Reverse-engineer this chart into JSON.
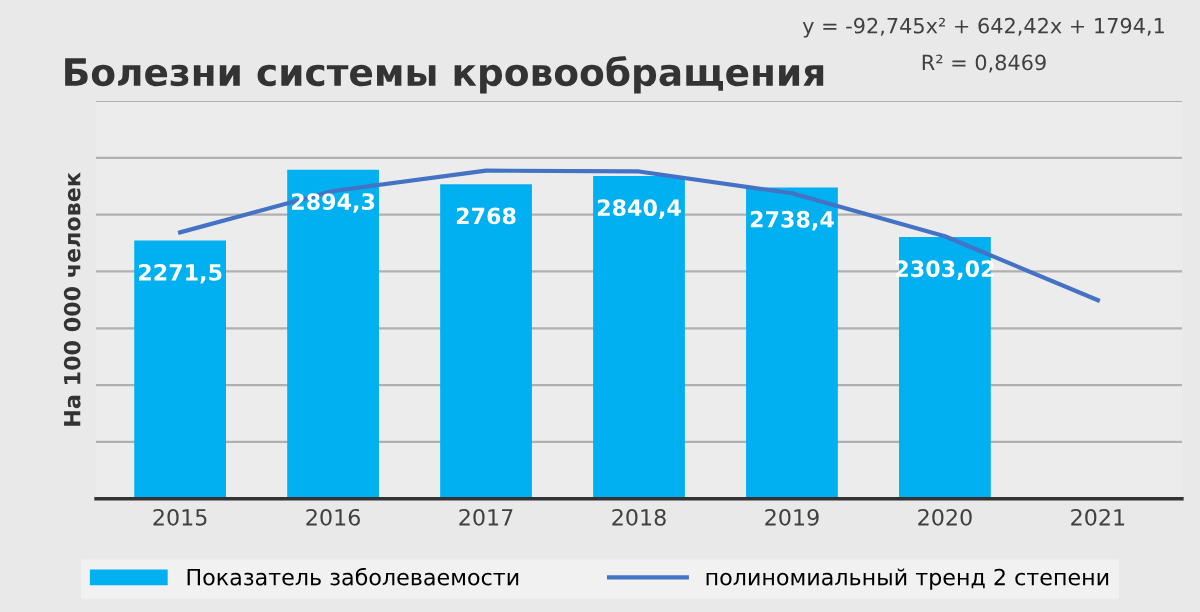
{
  "chart_data": {
    "type": "bar",
    "title": "Болезни системы кровообращения",
    "ylabel": "На 100 000 человек",
    "categories": [
      "2015",
      "2016",
      "2017",
      "2018",
      "2019",
      "2020",
      "2021"
    ],
    "series": [
      {
        "name": "Показатель заболеваемости",
        "color": "#00b0f0",
        "values": [
          2271.5,
          2894.3,
          2768,
          2840.4,
          2738.4,
          2303.02,
          null
        ],
        "value_labels": [
          "2271,5",
          "2894,3",
          "2768",
          "2840,4",
          "2738,4",
          "2303,02",
          null
        ]
      },
      {
        "name": "полиномиальный тренд 2 степени",
        "type": "line",
        "color": "#4472c4",
        "values": [
          2344,
          2708,
          2887,
          2880,
          2688,
          2310,
          1747
        ]
      }
    ],
    "annotations": [
      "y = -92,745x² + 642,42x + 1794,1",
      "R² = 0,8469"
    ],
    "ylim": [
      0,
      3500
    ],
    "yticks": [
      {
        "value": 0,
        "label": null
      },
      {
        "value": 500,
        "label": null
      },
      {
        "value": 1000,
        "label": null
      },
      {
        "value": 1500,
        "label": null
      },
      {
        "value": 2000,
        "label": null
      },
      {
        "value": 2500,
        "label": null
      },
      {
        "value": 3000,
        "label": null
      },
      {
        "value": 3500,
        "label": null
      }
    ],
    "tick_labels": "x",
    "grid": "y",
    "legend": "bottom"
  }
}
